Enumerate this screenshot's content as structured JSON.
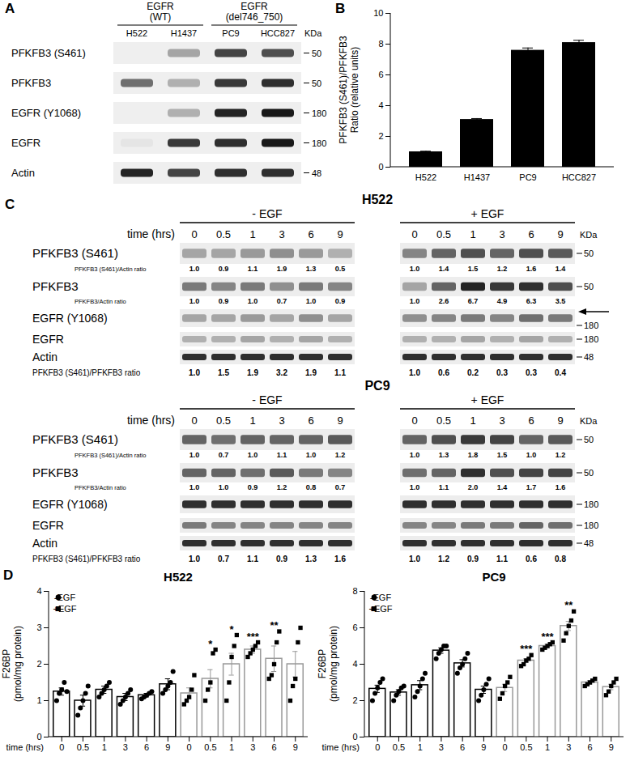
{
  "panel_letters": [
    "A",
    "B",
    "C",
    "D"
  ],
  "panel_A": {
    "groups": [
      {
        "lines": [
          "EGFR",
          "(WT)"
        ],
        "lanes": [
          "H522",
          "H1437"
        ]
      },
      {
        "lines": [
          "EGFR",
          "(del746_750)"
        ],
        "lanes": [
          "PC9",
          "HCC827"
        ]
      }
    ],
    "kda_label": "KDa",
    "rows": [
      {
        "label": "PFKFB3 (S461)",
        "kda": 50,
        "bands": [
          0,
          0.35,
          0.8,
          0.75
        ]
      },
      {
        "label": "PFKFB3",
        "kda": 50,
        "bands": [
          0.6,
          0.3,
          0.85,
          0.9
        ]
      },
      {
        "label": "EGFR (Y1068)",
        "kda": 180,
        "bands": [
          0,
          0.3,
          0.95,
          1
        ]
      },
      {
        "label": "EGFR",
        "kda": 180,
        "bands": [
          0.05,
          0.85,
          0.9,
          1
        ]
      },
      {
        "label": "Actin",
        "kda": 48,
        "bands": [
          0.95,
          0.8,
          0.9,
          0.9
        ]
      }
    ]
  },
  "panel_C": [
    {
      "title": "H522",
      "time_label": "time (hrs)",
      "groups": [
        "- EGF",
        "+ EGF"
      ],
      "times": [
        "0",
        "0.5",
        "1",
        "3",
        "6",
        "9"
      ],
      "kda_label": "KDa",
      "rows": [
        {
          "label": "PFKFB3 (S461)",
          "kda": 50,
          "bands": [
            0.35,
            0.35,
            0.4,
            0.45,
            0.4,
            0.3,
            0.5,
            0.65,
            0.75,
            0.65,
            0.75,
            0.7
          ],
          "ratio": {
            "label": "PFKFB3 (S461)/Actin ratio",
            "values": [
              "1.0",
              "0.9",
              "1.1",
              "1.9",
              "1.3",
              "0.5",
              "1.0",
              "1.4",
              "1.5",
              "1.2",
              "1.6",
              "1.4"
            ]
          }
        },
        {
          "label": "PFKFB3",
          "kda": 50,
          "bands": [
            0.55,
            0.5,
            0.55,
            0.45,
            0.55,
            0.5,
            0.35,
            0.65,
            0.95,
            0.85,
            0.9,
            0.75
          ],
          "ratio": {
            "label": "PFKFB3/Actin ratio",
            "values": [
              "1.0",
              "0.9",
              "1.0",
              "0.7",
              "1.0",
              "0.9",
              "1.0",
              "2.6",
              "6.7",
              "4.9",
              "6.3",
              "3.5"
            ]
          }
        },
        {
          "label": "EGFR (Y1068)",
          "kda": 180,
          "arrow": true,
          "bands": [
            0.35,
            0.35,
            0.4,
            0.35,
            0.45,
            0.35,
            0.45,
            0.5,
            0.55,
            0.5,
            0.6,
            0.55
          ]
        },
        {
          "label": "EGFR",
          "kda": 180,
          "bands": [
            0.3,
            0.3,
            0.35,
            0.3,
            0.35,
            0.3,
            0.3,
            0.3,
            0.35,
            0.3,
            0.35,
            0.3
          ]
        },
        {
          "label": "Actin",
          "kda": 48,
          "bands": [
            0.9,
            0.9,
            0.9,
            0.9,
            0.9,
            0.9,
            0.9,
            0.9,
            0.9,
            0.9,
            0.9,
            0.9
          ]
        }
      ],
      "bottom_ratio": {
        "label": "PFKFB3 (S461)/PFKFB3 ratio",
        "values": [
          "1.0",
          "1.5",
          "1.9",
          "3.2",
          "1.9",
          "1.1",
          "1.0",
          "0.6",
          "0.2",
          "0.3",
          "0.3",
          "0.4"
        ]
      }
    },
    {
      "title": "PC9",
      "time_label": "time (hrs)",
      "groups": [
        "- EGF",
        "+ EGF"
      ],
      "times": [
        "0",
        "0.5",
        "1",
        "3",
        "6",
        "9"
      ],
      "kda_label": "KDa",
      "rows": [
        {
          "label": "PFKFB3 (S461)",
          "kda": 50,
          "bands": [
            0.65,
            0.6,
            0.65,
            0.65,
            0.65,
            0.7,
            0.65,
            0.75,
            0.85,
            0.8,
            0.65,
            0.7
          ],
          "ratio": {
            "label": "PFKFB3 (S461)/Actin ratio",
            "values": [
              "1.0",
              "0.7",
              "1.0",
              "1.1",
              "1.0",
              "1.2",
              "1.0",
              "1.3",
              "1.8",
              "1.5",
              "1.0",
              "1.2"
            ]
          }
        },
        {
          "label": "PFKFB3",
          "kda": 50,
          "bands": [
            0.65,
            0.65,
            0.6,
            0.7,
            0.55,
            0.5,
            0.6,
            0.65,
            0.9,
            0.75,
            0.8,
            0.8
          ],
          "ratio": {
            "label": "PFKFB3/Actin ratio",
            "values": [
              "1.0",
              "1.0",
              "0.9",
              "1.2",
              "0.8",
              "0.7",
              "1.0",
              "1.1",
              "2.0",
              "1.4",
              "1.7",
              "1.6"
            ]
          }
        },
        {
          "label": "EGFR (Y1068)",
          "kda": 180,
          "bands": [
            0.9,
            0.9,
            0.9,
            0.9,
            0.9,
            0.9,
            0.9,
            0.9,
            0.9,
            0.9,
            0.9,
            0.9
          ]
        },
        {
          "label": "EGFR",
          "kda": 180,
          "bands": [
            0.55,
            0.5,
            0.5,
            0.5,
            0.5,
            0.5,
            0.5,
            0.5,
            0.55,
            0.55,
            0.65,
            0.6
          ]
        },
        {
          "label": "Actin",
          "kda": 48,
          "bands": [
            0.9,
            0.9,
            0.9,
            0.9,
            0.9,
            0.9,
            0.9,
            0.9,
            0.9,
            0.9,
            0.9,
            0.9
          ]
        }
      ],
      "bottom_ratio": {
        "label": "PFKFB3 (S461)/PFKFB3 ratio",
        "values": [
          "1.0",
          "0.7",
          "1.1",
          "0.9",
          "1.3",
          "1.6",
          "1.0",
          "1.2",
          "0.9",
          "1.1",
          "0.6",
          "0.8"
        ]
      }
    }
  ],
  "chart_data": [
    {
      "type": "bar",
      "y_label": [
        "PFKFB3 (S461)/PFKFB3",
        "Ratio (relative units)"
      ],
      "categories": [
        "H522",
        "H1437",
        "PC9",
        "HCC827"
      ],
      "values": [
        1.0,
        3.1,
        7.6,
        8.1
      ],
      "errors": [
        0.04,
        0.06,
        0.15,
        0.15
      ],
      "color": "#000000",
      "ylim": [
        0,
        10
      ],
      "yticks": [
        0,
        2,
        4,
        6,
        8,
        10
      ]
    },
    {
      "type": "bar",
      "title": "H522",
      "y_label": [
        "F26BP",
        "(pmol/mg protein)"
      ],
      "x_label": "time (hrs)",
      "categories": [
        "0",
        "0.5",
        "1",
        "3",
        "6",
        "9"
      ],
      "ylim": [
        0,
        4
      ],
      "yticks": [
        0,
        1,
        2,
        3,
        4
      ],
      "legend": "top-left",
      "series": [
        {
          "name": "-EGF",
          "color": "#000000",
          "marker": "circle",
          "values": [
            1.25,
            1.0,
            1.3,
            1.1,
            1.15,
            1.45
          ],
          "errors": [
            0.1,
            0.15,
            0.1,
            0.1,
            0.05,
            0.15
          ],
          "points": [
            [
              1.0,
              1.2,
              1.3,
              1.5,
              1.25
            ],
            [
              0.6,
              0.8,
              1.0,
              1.2,
              1.4
            ],
            [
              1.1,
              1.2,
              1.3,
              1.4,
              1.5
            ],
            [
              0.9,
              1.0,
              1.1,
              1.2,
              1.3
            ],
            [
              1.05,
              1.1,
              1.15,
              1.2,
              1.25
            ],
            [
              1.2,
              1.3,
              1.4,
              1.5,
              1.8
            ]
          ],
          "annotations": [
            null,
            null,
            null,
            null,
            null,
            null
          ]
        },
        {
          "name": "+EGF",
          "color": "#999999",
          "marker": "square",
          "values": [
            1.2,
            1.6,
            2.0,
            2.4,
            2.15,
            2.0
          ],
          "errors": [
            0.15,
            0.25,
            0.3,
            0.1,
            0.35,
            0.35
          ],
          "points": [
            [
              0.9,
              1.0,
              1.1,
              1.3,
              1.7
            ],
            [
              1.0,
              1.3,
              1.5,
              2.3,
              2.4
            ],
            [
              1.0,
              1.5,
              2.2,
              2.5,
              2.8
            ],
            [
              2.2,
              2.3,
              2.4,
              2.5,
              2.6
            ],
            [
              1.6,
              1.7,
              2.0,
              2.6,
              2.9
            ],
            [
              1.0,
              1.4,
              1.6,
              2.6,
              3.0
            ]
          ],
          "annotations": [
            null,
            "*",
            "*",
            "***",
            "**",
            null
          ]
        }
      ]
    },
    {
      "type": "bar",
      "title": "PC9",
      "y_label": [
        "F26BP",
        "(pmol/mg protein)"
      ],
      "x_label": "time (hrs)",
      "categories": [
        "0",
        "0.5",
        "1",
        "3",
        "6",
        "9"
      ],
      "ylim": [
        0,
        8
      ],
      "yticks": [
        0,
        2,
        4,
        6,
        8
      ],
      "legend": "top-left",
      "series": [
        {
          "name": "-EGF",
          "color": "#000000",
          "marker": "circle",
          "values": [
            2.65,
            2.45,
            2.85,
            4.75,
            4.05,
            2.6
          ],
          "errors": [
            0.2,
            0.15,
            0.25,
            0.15,
            0.2,
            0.2
          ],
          "points": [
            [
              2.0,
              2.4,
              2.7,
              3.0,
              3.2
            ],
            [
              2.0,
              2.3,
              2.5,
              2.7,
              2.8
            ],
            [
              2.2,
              2.5,
              2.8,
              3.2,
              3.5
            ],
            [
              4.3,
              4.6,
              4.8,
              5.0,
              5.0
            ],
            [
              3.5,
              3.8,
              4.0,
              4.3,
              4.6
            ],
            [
              2.0,
              2.3,
              2.6,
              2.9,
              3.2
            ]
          ],
          "annotations": [
            null,
            null,
            null,
            null,
            null,
            null
          ]
        },
        {
          "name": "+EGF",
          "color": "#999999",
          "marker": "square",
          "values": [
            2.7,
            4.2,
            5.0,
            6.1,
            3.0,
            2.75
          ],
          "errors": [
            0.2,
            0.1,
            0.1,
            0.25,
            0.1,
            0.15
          ],
          "points": [
            [
              2.1,
              2.4,
              2.8,
              3.0,
              3.3
            ],
            [
              3.9,
              4.0,
              4.2,
              4.3,
              4.5
            ],
            [
              4.8,
              4.9,
              5.0,
              5.1,
              5.2
            ],
            [
              5.3,
              5.7,
              6.1,
              6.4,
              6.9
            ],
            [
              2.8,
              2.9,
              3.0,
              3.1,
              3.2
            ],
            [
              2.3,
              2.5,
              2.8,
              3.0,
              3.2
            ]
          ],
          "annotations": [
            null,
            "***",
            "***",
            "**",
            null,
            null
          ]
        }
      ]
    }
  ]
}
